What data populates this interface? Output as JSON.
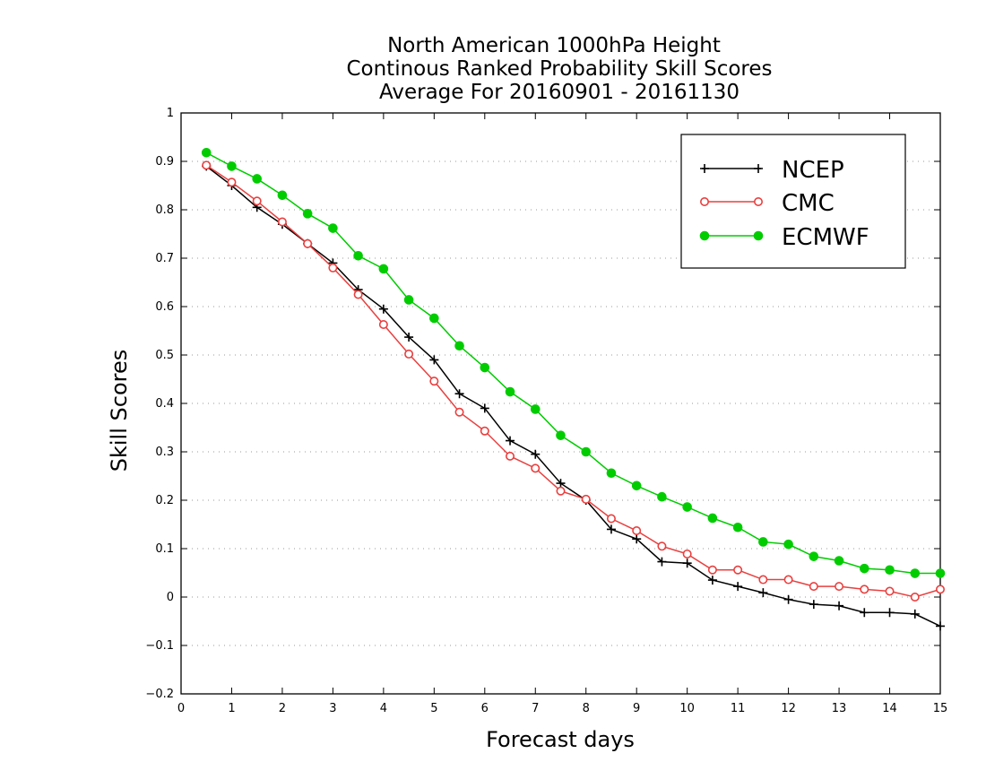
{
  "chart_data": {
    "type": "line",
    "title": [
      "North American 1000hPa Height",
      "Continous Ranked Probability Skill Scores",
      "Average For 20160901 - 20161130"
    ],
    "xlabel": "Forecast days",
    "ylabel": "Skill Scores",
    "xlim": [
      0,
      15
    ],
    "ylim": [
      -0.2,
      1
    ],
    "xticks": [
      "0",
      "1",
      "2",
      "3",
      "4",
      "5",
      "6",
      "7",
      "8",
      "9",
      "10",
      "11",
      "12",
      "13",
      "14",
      "15"
    ],
    "yticks": [
      "−0.2",
      "−0.1",
      "0",
      "0.1",
      "0.2",
      "0.3",
      "0.4",
      "0.5",
      "0.6",
      "0.7",
      "0.8",
      "0.9",
      "1"
    ],
    "grid": "horizontal dotted",
    "legend_position": "top-right",
    "x": [
      0.5,
      1,
      1.5,
      2,
      2.5,
      3,
      3.5,
      4,
      4.5,
      5,
      5.5,
      6,
      6.5,
      7,
      7.5,
      8,
      8.5,
      9,
      9.5,
      10,
      10.5,
      11,
      11.5,
      12,
      12.5,
      13,
      13.5,
      14,
      14.5,
      15
    ],
    "series": [
      {
        "name": "NCEP",
        "color": "#000000",
        "marker": "plus",
        "values": [
          0.89,
          0.85,
          0.805,
          0.77,
          0.73,
          0.69,
          0.635,
          0.595,
          0.537,
          0.49,
          0.42,
          0.39,
          0.323,
          0.295,
          0.235,
          0.2,
          0.14,
          0.12,
          0.073,
          0.07,
          0.035,
          0.022,
          0.009,
          -0.005,
          -0.015,
          -0.018,
          -0.032,
          -0.032,
          -0.035,
          -0.06
        ]
      },
      {
        "name": "CMC",
        "color": "#e8403f",
        "marker": "open-circle",
        "values": [
          0.892,
          0.857,
          0.818,
          0.775,
          0.73,
          0.68,
          0.625,
          0.563,
          0.502,
          0.446,
          0.382,
          0.343,
          0.291,
          0.266,
          0.219,
          0.202,
          0.162,
          0.137,
          0.105,
          0.089,
          0.056,
          0.056,
          0.036,
          0.036,
          0.022,
          0.022,
          0.016,
          0.012,
          0.0,
          0.016
        ]
      },
      {
        "name": "ECMWF",
        "color": "#00cc00",
        "marker": "filled-circle",
        "values": [
          0.918,
          0.89,
          0.864,
          0.83,
          0.792,
          0.762,
          0.705,
          0.678,
          0.614,
          0.576,
          0.519,
          0.474,
          0.424,
          0.388,
          0.334,
          0.3,
          0.256,
          0.23,
          0.207,
          0.186,
          0.163,
          0.144,
          0.114,
          0.109,
          0.084,
          0.075,
          0.059,
          0.056,
          0.049,
          0.049
        ]
      }
    ]
  }
}
